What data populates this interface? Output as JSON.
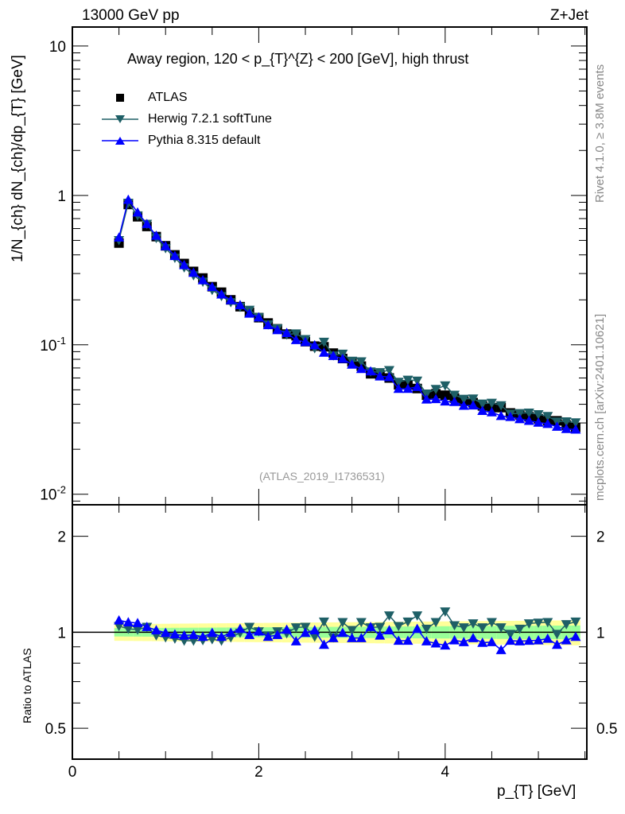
{
  "header": {
    "left": "13000 GeV pp",
    "right": "Z+Jet"
  },
  "side_text": {
    "rivet": "Rivet 4.1.0, ≥ 3.8M events",
    "mcplots": "mcplots.cern.ch [arXiv:2401.10621]"
  },
  "watermark": "(ATLAS_2019_I1736531)",
  "colors": {
    "atlas": "#000000",
    "herwig": "#1e5f66",
    "pythia": "#0000ff",
    "band_inner": "#99ff99",
    "band_outer": "#ffff99"
  },
  "chart_data": [
    {
      "type": "scatter",
      "title": "Away region, 120 < p_{T}^{Z} < 200 [GeV], high thrust",
      "xlabel": "p_{T} [GeV]",
      "ylabel": "1/N_{ch} dN_{ch}/dp_{T} [GeV]",
      "yscale": "log",
      "xlim": [
        0,
        5.52
      ],
      "ylim": [
        0.0085,
        13.4
      ],
      "xticks": [
        "0",
        "2",
        "4"
      ],
      "yticks": [
        "10^{-2}",
        "10^{-1}",
        "1",
        "10"
      ],
      "legend": [
        "ATLAS",
        "Herwig 7.2.1 softTune",
        "Pythia 8.315 default"
      ],
      "legend_placement": "top-left",
      "x": [
        0.5,
        0.6,
        0.7,
        0.8,
        0.9,
        1.0,
        1.1,
        1.2,
        1.3,
        1.4,
        1.5,
        1.6,
        1.7,
        1.8,
        1.9,
        2.0,
        2.1,
        2.2,
        2.3,
        2.4,
        2.5,
        2.6,
        2.7,
        2.8,
        2.9,
        3.0,
        3.1,
        3.2,
        3.3,
        3.4,
        3.5,
        3.6,
        3.7,
        3.8,
        3.9,
        4.0,
        4.1,
        4.2,
        4.3,
        4.4,
        4.5,
        4.6,
        4.7,
        4.8,
        4.9,
        5.0,
        5.1,
        5.2,
        5.3,
        5.4
      ],
      "series": [
        {
          "name": "ATLAS",
          "values": [
            0.48,
            0.87,
            0.72,
            0.62,
            0.53,
            0.46,
            0.4,
            0.35,
            0.31,
            0.28,
            0.245,
            0.225,
            0.2,
            0.18,
            0.165,
            0.152,
            0.14,
            0.128,
            0.118,
            0.115,
            0.105,
            0.098,
            0.097,
            0.088,
            0.081,
            0.077,
            0.072,
            0.064,
            0.063,
            0.06,
            0.054,
            0.054,
            0.051,
            0.046,
            0.047,
            0.046,
            0.044,
            0.042,
            0.041,
            0.039,
            0.038,
            0.038,
            0.035,
            0.034,
            0.033,
            0.032,
            0.031,
            0.031,
            0.029,
            0.028
          ]
        }
      ],
      "model_values_note": "Herwig and Pythia = ATLAS x ratio (see ratio panel)"
    },
    {
      "type": "line",
      "ylabel": "Ratio to ATLAS",
      "yscale": "log",
      "ylim": [
        0.4,
        2.51
      ],
      "yticks": [
        "0.5",
        "1",
        "2"
      ],
      "xlim": [
        0,
        5.52
      ],
      "series": [
        {
          "name": "Herwig 7.2.1 softTune",
          "values": [
            1.045,
            1.025,
            1.019,
            1.039,
            0.977,
            0.963,
            0.955,
            0.941,
            0.941,
            0.944,
            0.95,
            0.941,
            0.963,
            0.996,
            1.039,
            1.006,
            0.977,
            1.006,
            0.992,
            1.035,
            1.039,
            0.968,
            1.079,
            0.963,
            1.075,
            1.015,
            1.075,
            1.035,
            1.039,
            1.128,
            1.045,
            1.079,
            1.128,
            1.025,
            1.075,
            1.161,
            1.051,
            1.035,
            1.065,
            1.035,
            1.075,
            1.035,
            0.987,
            1.025,
            1.065,
            1.071,
            1.075,
            0.987,
            1.059,
            1.079
          ]
        },
        {
          "name": "Pythia 8.315 default",
          "values": [
            1.09,
            1.075,
            1.069,
            1.039,
            1.015,
            0.996,
            0.985,
            0.977,
            0.981,
            0.968,
            0.996,
            0.968,
            0.996,
            1.025,
            0.981,
            1.006,
            0.968,
            0.981,
            1.019,
            0.937,
            0.996,
            1.015,
            0.914,
            0.959,
            0.996,
            0.959,
            0.959,
            1.039,
            0.977,
            1.015,
            0.941,
            0.941,
            1.025,
            0.937,
            0.923,
            0.909,
            0.944,
            0.932,
            0.959,
            0.927,
            0.932,
            0.88,
            0.941,
            0.937,
            0.941,
            0.944,
            0.955,
            0.914,
            0.944,
            0.968
          ]
        }
      ],
      "band_inner_halfwidth": [
        0.03,
        0.05
      ],
      "band_outer_halfwidth": [
        0.06,
        0.09
      ]
    }
  ]
}
